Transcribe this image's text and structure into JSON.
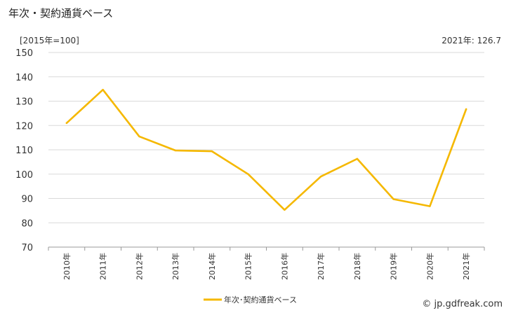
{
  "header": {
    "title": "年次・契約通貨ベース",
    "unit_label": "[2015年=100]",
    "latest_label": "2021年:",
    "latest_value": "126.7"
  },
  "footer": {
    "credit": "© jp.gdfreak.com"
  },
  "colors": {
    "line": "#f5b800",
    "grid": "#d9d9d9",
    "axis": "#999999"
  },
  "chart_data": {
    "type": "line",
    "title": "年次・契約通貨ベース",
    "categories": [
      "2010年",
      "2011年",
      "2012年",
      "2013年",
      "2014年",
      "2015年",
      "2016年",
      "2017年",
      "2018年",
      "2019年",
      "2020年",
      "2021年"
    ],
    "series": [
      {
        "name": "年次･契約通貨ベース",
        "values": [
          121.0,
          134.7,
          115.5,
          109.7,
          109.4,
          100.0,
          85.3,
          99.0,
          106.3,
          89.7,
          86.8,
          126.7
        ]
      }
    ],
    "y_ticks": [
      70,
      80,
      90,
      100,
      110,
      120,
      130,
      140,
      150
    ],
    "ylim": [
      70,
      150
    ],
    "grid": true,
    "legend_position": "bottom-center"
  }
}
